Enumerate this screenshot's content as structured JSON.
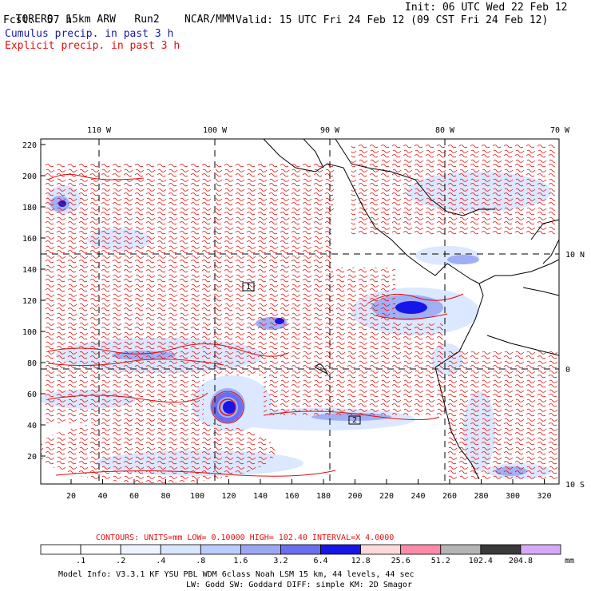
{
  "header": {
    "model": "TORERO",
    "resolution": "15km ARW",
    "run": "Run2",
    "org": "NCAR/MMM",
    "init": "Init: 06 UTC Wed 22 Feb 12",
    "fcst_label": "Fcst:",
    "fcst_value": "57 h",
    "valid": "Valid: 15 UTC Fri 24 Feb 12 (09 CST Fri 24 Feb 12)",
    "legend_cumulus": "Cumulus precip. in past 3 h",
    "legend_explicit": "Explicit precip. in past 3 h"
  },
  "map": {
    "lon_labels": [
      "110 W",
      "100 W",
      "90 W",
      "80 W",
      "70 W"
    ],
    "lat_labels": [
      "10 N",
      "0",
      "10 S"
    ],
    "y_ticks": [
      "220",
      "200",
      "180",
      "160",
      "140",
      "120",
      "100",
      "80",
      "60",
      "40",
      "20"
    ],
    "x_ticks": [
      "20",
      "40",
      "60",
      "80",
      "100",
      "120",
      "140",
      "160",
      "180",
      "200",
      "220",
      "240",
      "260",
      "280",
      "300",
      "320"
    ],
    "marker_labels": [
      "1",
      "2"
    ]
  },
  "footer": {
    "contours_line": "CONTOURS:  UNITS=mm  LOW= 0.10000       HIGH= 102.40      INTERVAL=X  4.0000",
    "colorbar_values": [
      ".1",
      ".2",
      ".4",
      ".8",
      "1.6",
      "3.2",
      "6.4",
      "12.8",
      "25.6",
      "51.2",
      "102.4",
      "204.8"
    ],
    "colorbar_colors": [
      "#ffffff",
      "#ffffff",
      "#eef4ff",
      "#d8e6ff",
      "#b8ccff",
      "#9aa8f4",
      "#6a6ef0",
      "#1616e8",
      "#ffd8d8",
      "#ff8aa8",
      "#b4b4b4",
      "#3a3a3a",
      "#d8a8f8"
    ],
    "colorbar_unit": "mm",
    "model_info_1": "Model Info: V3.3.1    KF     YSU PBL  WDM 6class  Noah LSM  15 km,    44 levels,    44 sec",
    "model_info_2": "LW: Godd SW: Goddard DIFF: simple KM: 2D Smagor"
  }
}
